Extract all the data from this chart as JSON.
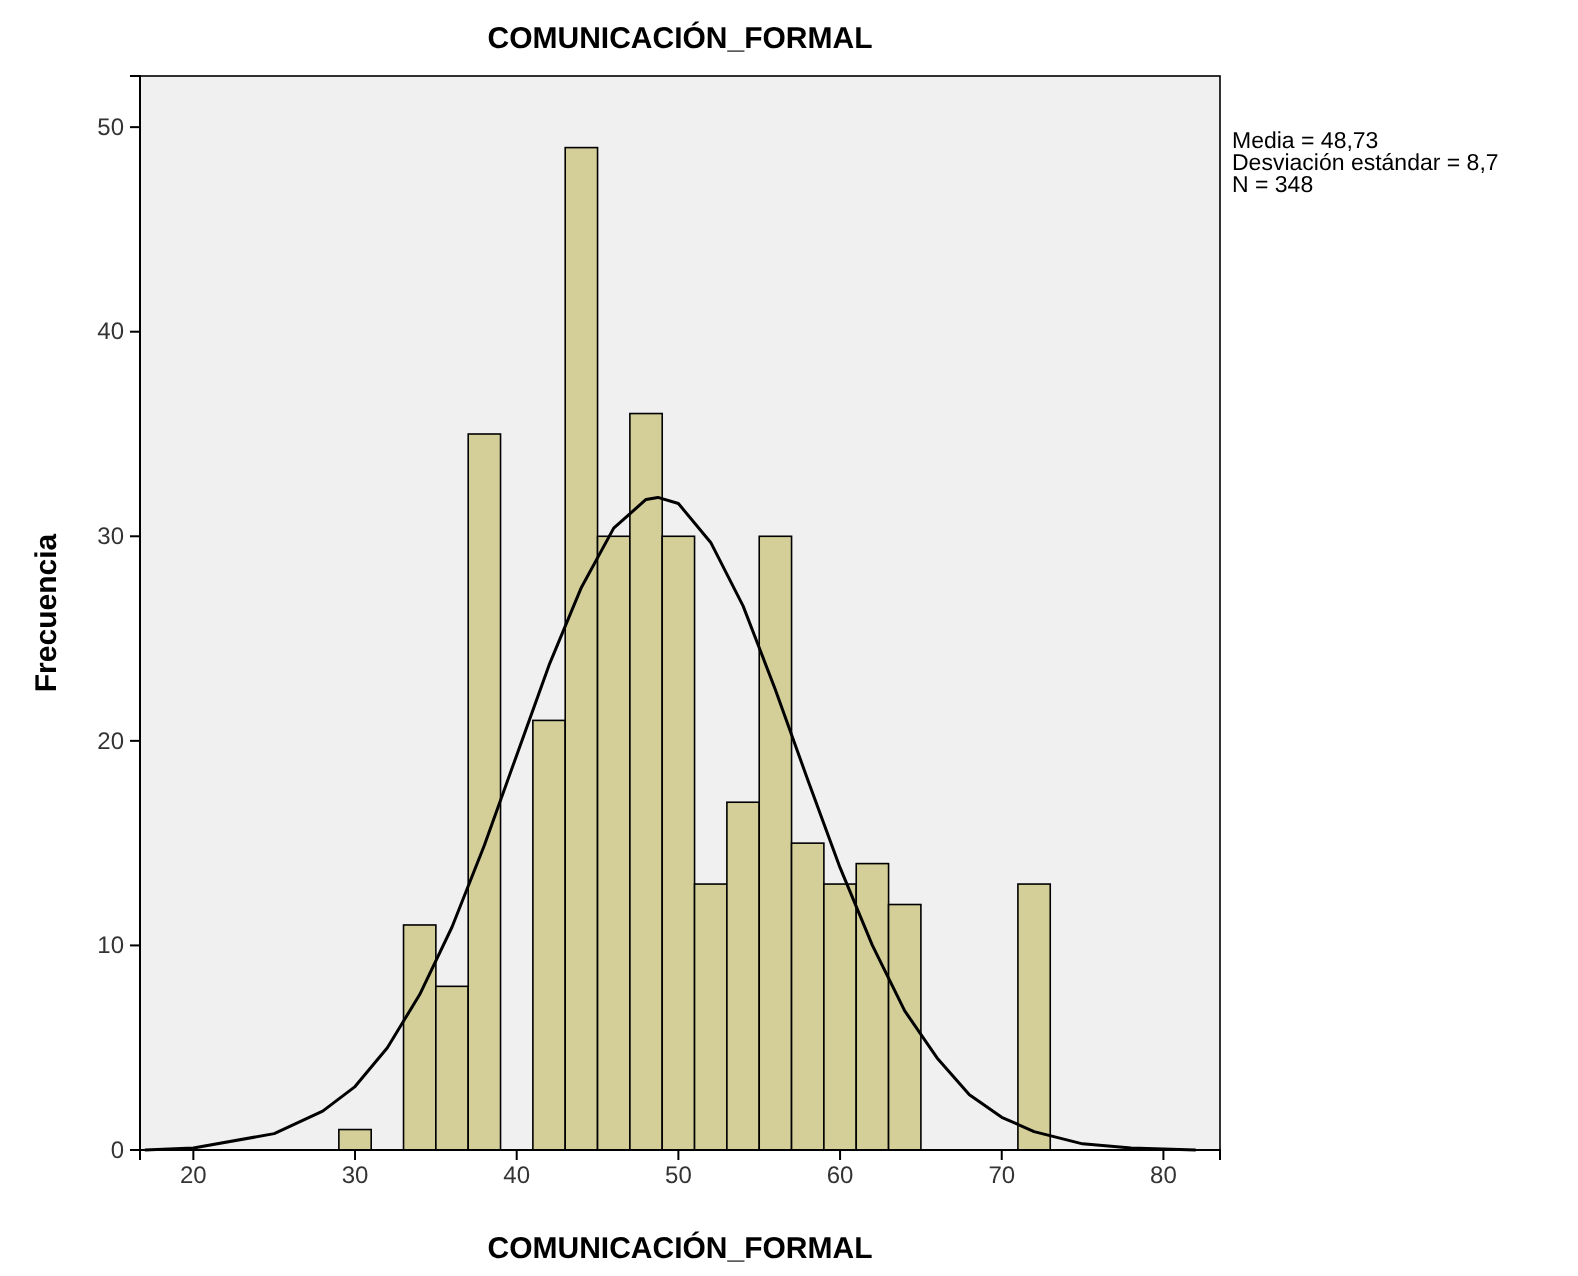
{
  "chart_data": {
    "type": "histogram",
    "title": "COMUNICACIÓN_FORMAL",
    "xlabel": "COMUNICACIÓN_FORMAL",
    "ylabel": "Frecuencia",
    "bins": [
      29,
      31,
      33,
      35,
      37,
      39,
      41,
      43,
      45,
      47,
      49,
      51,
      53,
      55,
      57,
      59,
      61,
      63,
      65,
      67,
      69,
      71,
      73
    ],
    "values": [
      1,
      0,
      11,
      8,
      35,
      0,
      21,
      49,
      30,
      36,
      30,
      13,
      17,
      30,
      15,
      13,
      14,
      12,
      0,
      0,
      0,
      13
    ],
    "color": "#d4cf99",
    "series": [
      {
        "type": "line",
        "color": "#000000",
        "x": [
          17,
          20,
          25,
          28,
          30,
          32,
          34,
          36,
          38,
          40,
          42,
          44,
          46,
          48,
          48.73,
          50,
          52,
          54,
          56,
          58,
          60,
          62,
          64,
          66,
          68,
          70,
          72,
          75,
          78,
          82
        ],
        "values": [
          0,
          0.1,
          0.8,
          1.9,
          3.1,
          5,
          7.6,
          10.9,
          14.9,
          19.3,
          23.7,
          27.5,
          30.4,
          31.8,
          31.9,
          31.6,
          29.7,
          26.6,
          22.5,
          18.1,
          13.8,
          10,
          6.8,
          4.5,
          2.7,
          1.6,
          0.9,
          0.3,
          0.1,
          0
        ]
      }
    ],
    "xlim": [
      16.7,
      83.5
    ],
    "ylim": [
      0,
      52.5
    ],
    "xticks": [
      20,
      30,
      40,
      50,
      60,
      70,
      80
    ],
    "yticks": [
      0,
      10,
      20,
      30,
      40,
      50
    ],
    "annotations": [
      "Media = 48,73",
      "Desviación estándar = 8,7",
      "N = 348"
    ]
  }
}
